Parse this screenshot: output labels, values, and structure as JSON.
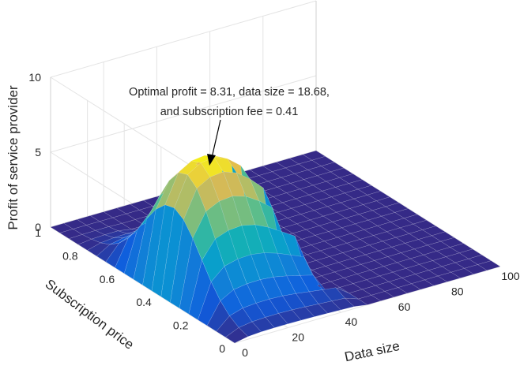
{
  "chart_data": {
    "type": "surface",
    "zlabel": "Profit of service provider",
    "xlabel": "Data size",
    "ylabel": "Subscription price",
    "xlim": [
      0,
      100
    ],
    "ylim": [
      0,
      1
    ],
    "zlim": [
      0,
      10
    ],
    "grid": true,
    "colormap": "parula",
    "x_ticks": [
      "0",
      "20",
      "40",
      "60",
      "80",
      "100"
    ],
    "y_ticks": [
      "0",
      "0.2",
      "0.4",
      "0.6",
      "0.8",
      "1"
    ],
    "z_ticks": [
      "0",
      "5",
      "10"
    ],
    "x": [
      0,
      5,
      10,
      15,
      20,
      25,
      30,
      35,
      40,
      45,
      50,
      55,
      60,
      65,
      70,
      75,
      80,
      85,
      90,
      95,
      100
    ],
    "y": [
      0,
      0.05,
      0.1,
      0.15,
      0.2,
      0.25,
      0.3,
      0.35,
      0.4,
      0.45,
      0.5,
      0.55,
      0.6,
      0.65,
      0.7,
      0.75,
      0.8,
      0.85,
      0.9,
      0.95,
      1.0
    ],
    "peak": {
      "profit": 8.31,
      "data_size": 18.68,
      "subscription_fee": 0.41
    },
    "annotation": {
      "line1": "Optimal profit = 8.31, data size = 18.68,",
      "line2": "and subscription fee = 0.41"
    }
  }
}
